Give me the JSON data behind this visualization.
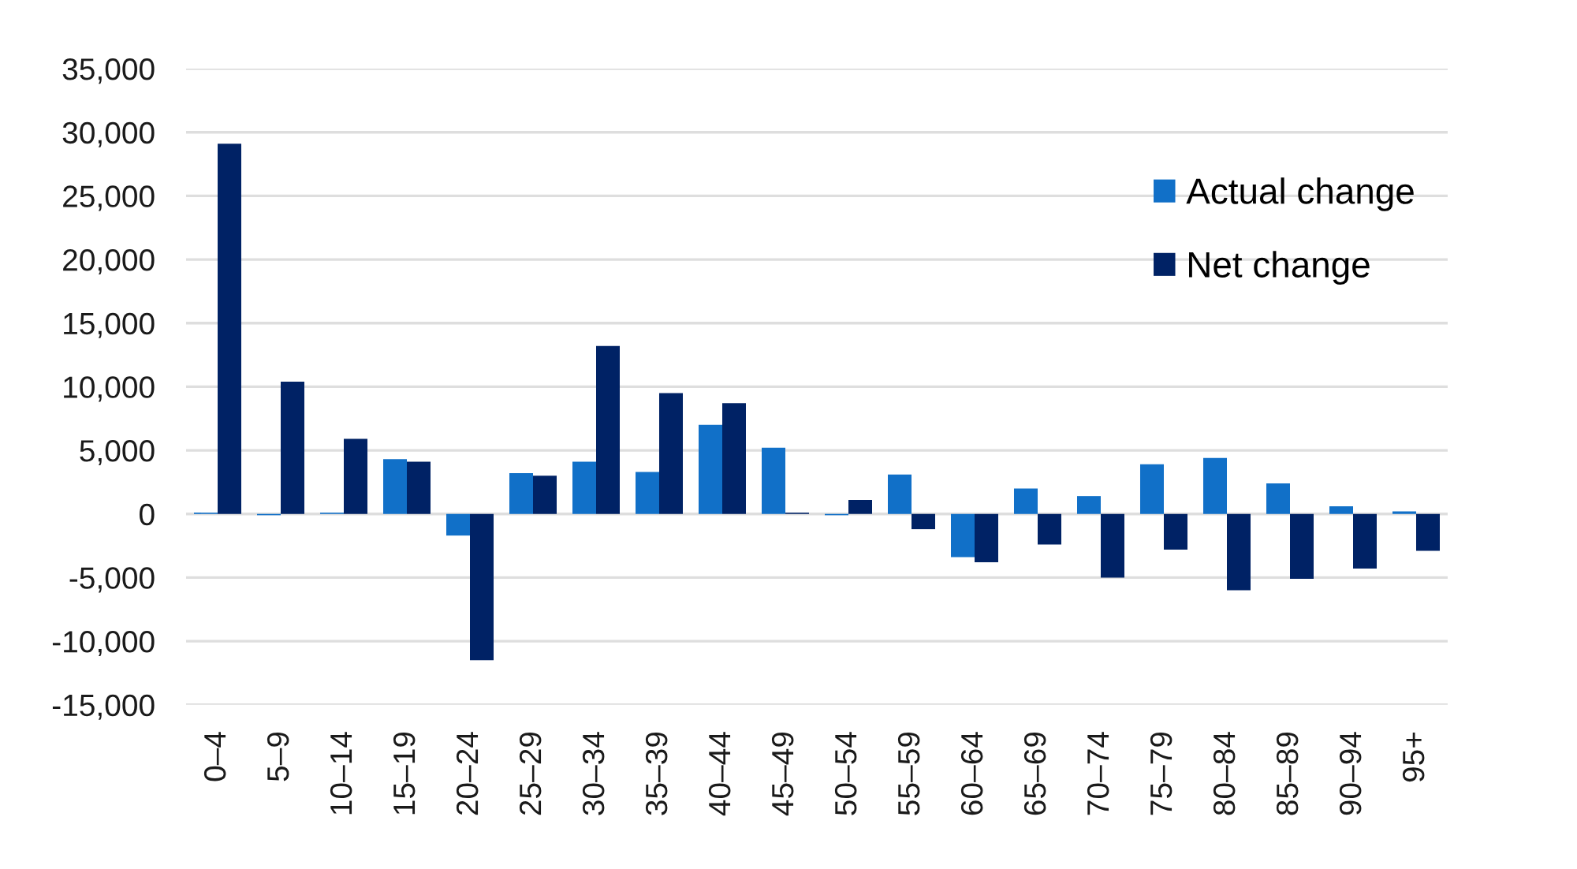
{
  "chart_data": {
    "type": "bar",
    "categories": [
      "0–4",
      "5–9",
      "10–14",
      "15–19",
      "20–24",
      "25–29",
      "30–34",
      "35–39",
      "40–44",
      "45–49",
      "50–54",
      "55–59",
      "60–64",
      "65–69",
      "70–74",
      "75–79",
      "80–84",
      "85–89",
      "90–94",
      "95+"
    ],
    "series": [
      {
        "name": "Actual change",
        "color": "#1170c8",
        "values": [
          100,
          -100,
          100,
          4300,
          -1700,
          3200,
          4100,
          3300,
          7000,
          5200,
          -100,
          3100,
          -3400,
          2000,
          1400,
          3900,
          4400,
          2400,
          600,
          200
        ]
      },
      {
        "name": "Net change",
        "color": "#002265",
        "values": [
          29100,
          10400,
          5900,
          4100,
          -11500,
          3000,
          13200,
          9500,
          8700,
          100,
          1100,
          -1200,
          -3800,
          -2400,
          -5000,
          -2800,
          -6000,
          -5100,
          -4300,
          -2900
        ]
      }
    ],
    "ylim": [
      -15000,
      35000
    ],
    "yticks": [
      {
        "value": -15000,
        "label": "-15,000"
      },
      {
        "value": -10000,
        "label": "-10,000"
      },
      {
        "value": -5000,
        "label": "-5,000"
      },
      0,
      {
        "value": 5000,
        "label": "5,000"
      },
      {
        "value": 10000,
        "label": "10,000"
      },
      {
        "value": 15000,
        "label": "15,000"
      },
      {
        "value": 20000,
        "label": "20,000"
      },
      {
        "value": 25000,
        "label": "25,000"
      },
      {
        "value": 30000,
        "label": "30,000"
      },
      {
        "value": 35000,
        "label": "35,000"
      }
    ],
    "grid": "y",
    "legend": "top right"
  }
}
